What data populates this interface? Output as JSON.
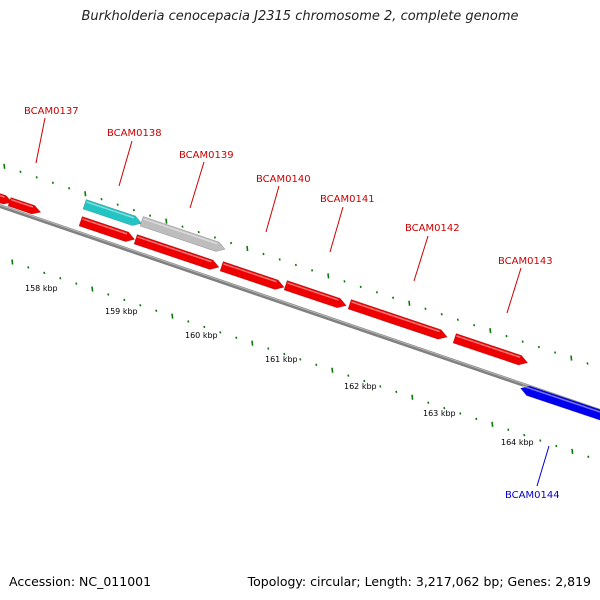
{
  "title": "Burkholderia cenocepacia J2315 chromosome 2, complete genome",
  "footer": {
    "accession": "Accession: NC_011001",
    "summary": "Topology: circular; Length: 3,217,062 bp; Genes: 2,819"
  },
  "colors": {
    "forward_gene": "#ee0000",
    "label_forward": "#cc0000",
    "label_reverse": "#0000cc",
    "reverse_gene": "#0000ee",
    "cyan_gene": "#22c4c4",
    "gray_gene": "#bdbdbd",
    "backbone": "#808080",
    "ticks": "#0a7a0a"
  },
  "scale_labels": [
    "158 kbp",
    "159 kbp",
    "160 kbp",
    "161 kbp",
    "162 kbp",
    "163 kbp",
    "164 kbp"
  ],
  "gene_labels": [
    {
      "name": "BCAM0137",
      "strand": "forward"
    },
    {
      "name": "BCAM0138",
      "strand": "forward"
    },
    {
      "name": "BCAM0139",
      "strand": "forward"
    },
    {
      "name": "BCAM0140",
      "strand": "forward"
    },
    {
      "name": "BCAM0141",
      "strand": "forward"
    },
    {
      "name": "BCAM0142",
      "strand": "forward"
    },
    {
      "name": "BCAM0143",
      "strand": "forward"
    },
    {
      "name": "BCAM0144",
      "strand": "reverse"
    }
  ]
}
